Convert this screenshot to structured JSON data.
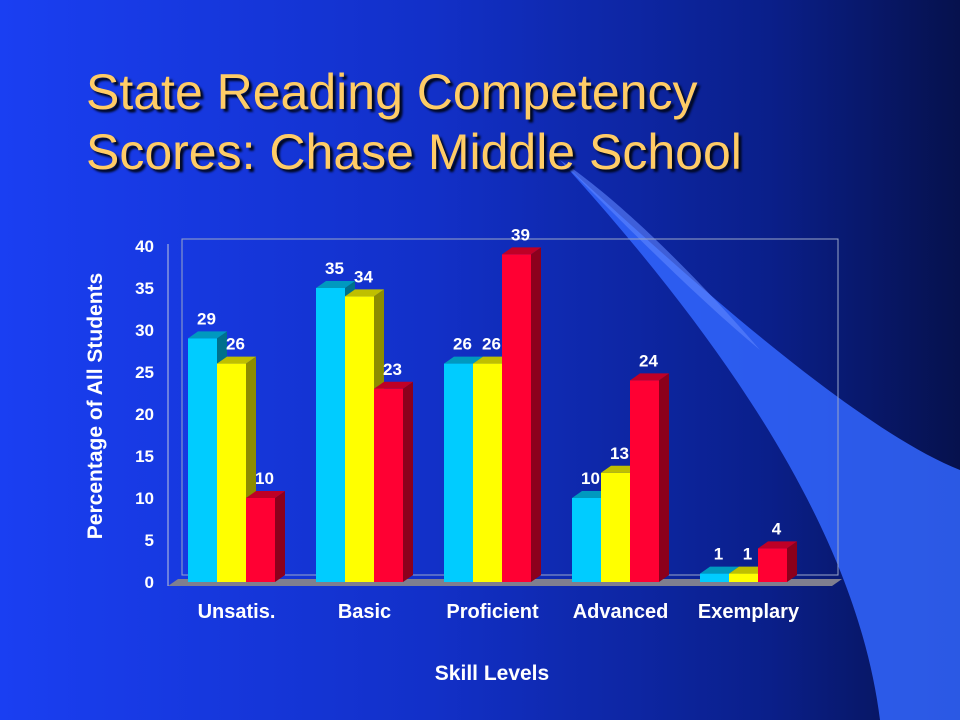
{
  "slide": {
    "title_line1": "State Reading Competency",
    "title_line2": "Scores: Chase Middle School"
  },
  "colors": {
    "background": "#1a3ff2",
    "title": "#ffcc66",
    "series": [
      "#00ccff",
      "#ffff00",
      "#ff0033"
    ]
  },
  "chart_data": {
    "type": "bar",
    "style": "3d-clustered",
    "categories": [
      "Unsatis.",
      "Basic",
      "Proficient",
      "Advanced",
      "Exemplary"
    ],
    "series": [
      {
        "values": [
          29,
          35,
          26,
          10,
          1
        ]
      },
      {
        "values": [
          26,
          34,
          26,
          13,
          1
        ]
      },
      {
        "values": [
          10,
          23,
          39,
          24,
          4
        ]
      }
    ],
    "xlabel": "Skill Levels",
    "ylabel": "Percentage of All Students",
    "ylim": [
      0,
      40
    ],
    "yticks": [
      0,
      5,
      10,
      15,
      20,
      25,
      30,
      35,
      40
    ],
    "grid": false,
    "legend": "none",
    "data_labels": true
  }
}
